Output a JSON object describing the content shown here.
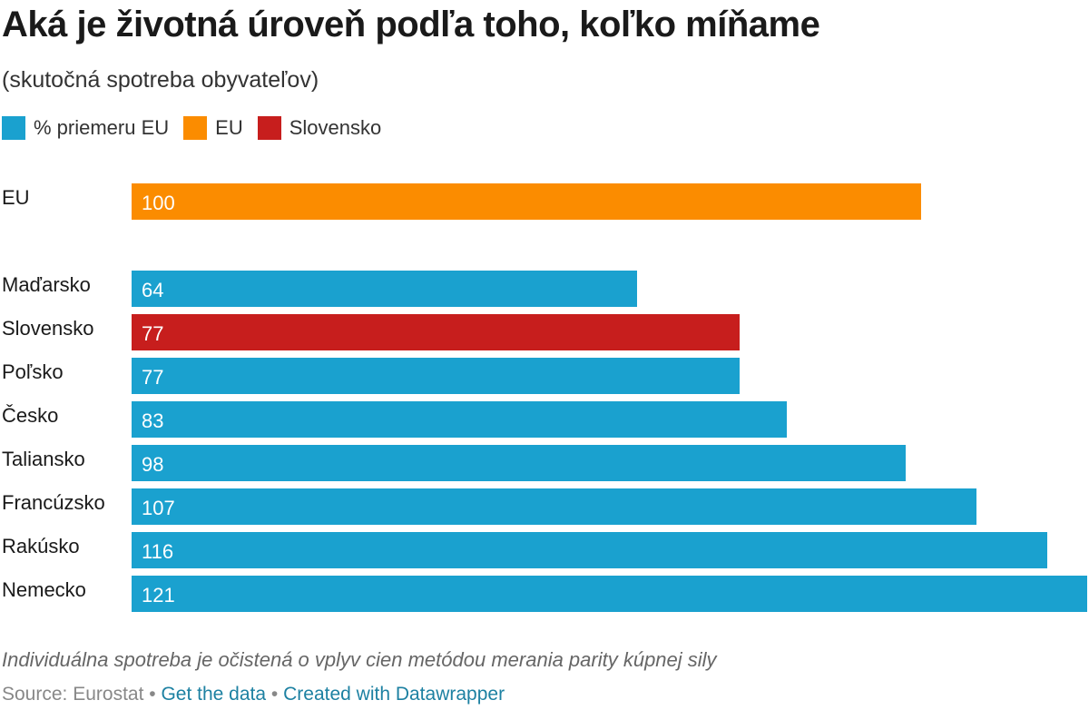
{
  "title": "Aká je životná úroveň podľa toho, koľko míňame",
  "subtitle": "(skutočná spotreba obyvateľov)",
  "colors": {
    "default": "#1aa1cf",
    "eu": "#fb8c00",
    "slovakia": "#c71e1d"
  },
  "legend": [
    {
      "label": "% priemeru EU",
      "color": "#1aa1cf"
    },
    {
      "label": "EU",
      "color": "#fb8c00"
    },
    {
      "label": "Slovensko",
      "color": "#c71e1d"
    }
  ],
  "chart_data": {
    "type": "bar",
    "orientation": "horizontal",
    "categories": [
      "EU",
      "Maďarsko",
      "Slovensko",
      "Poľsko",
      "Česko",
      "Taliansko",
      "Francúzsko",
      "Rakúsko",
      "Nemecko"
    ],
    "values": [
      100,
      64,
      77,
      77,
      83,
      98,
      107,
      116,
      121
    ],
    "value_labels": [
      "100",
      "64",
      "77",
      "77",
      "83",
      "98",
      "107",
      "116",
      "121"
    ],
    "bar_colors": [
      "#fb8c00",
      "#1aa1cf",
      "#c71e1d",
      "#1aa1cf",
      "#1aa1cf",
      "#1aa1cf",
      "#1aa1cf",
      "#1aa1cf",
      "#1aa1cf"
    ],
    "xlim": [
      0,
      121
    ],
    "grid": false,
    "legend_position": "top-left"
  },
  "notes": "Individuálna spotreba je očistená o vplyv cien metódou merania parity kúpnej sily",
  "footer": {
    "source": "Source: Eurostat",
    "separator": "•",
    "get_data": "Get the data",
    "created_with": "Created with Datawrapper"
  }
}
